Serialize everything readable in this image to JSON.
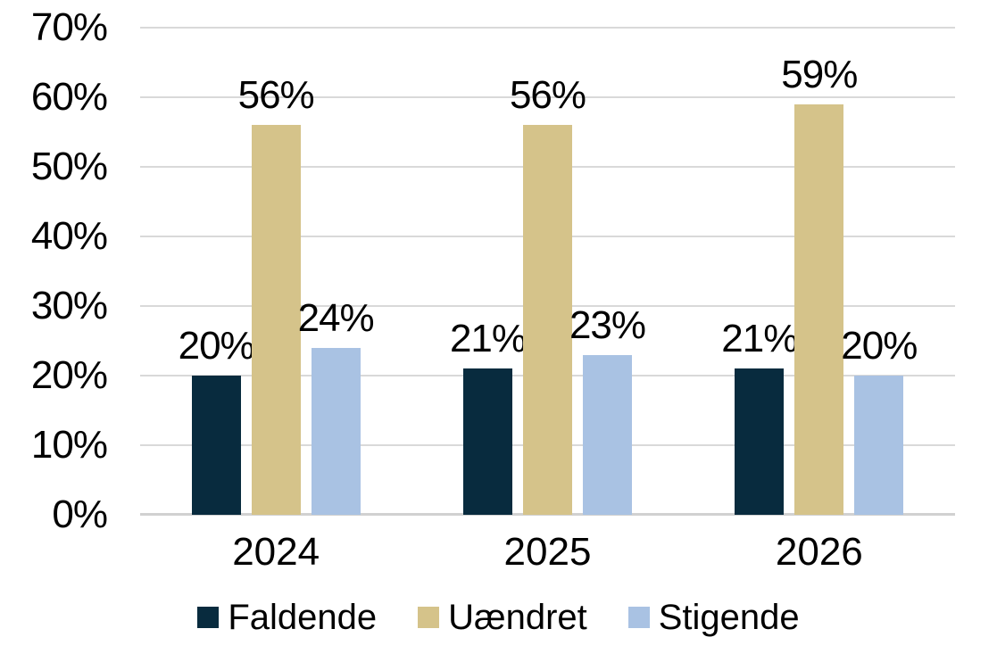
{
  "chart_data": {
    "type": "bar",
    "title": "",
    "xlabel": "",
    "ylabel": "",
    "categories": [
      "2024",
      "2025",
      "2026"
    ],
    "series": [
      {
        "name": "Faldende",
        "color": "#082b3e",
        "values": [
          20,
          21,
          21
        ]
      },
      {
        "name": "Uændret",
        "color": "#d5c38a",
        "values": [
          56,
          56,
          59
        ]
      },
      {
        "name": "Stigende",
        "color": "#a9c2e3",
        "values": [
          24,
          23,
          20
        ]
      }
    ],
    "data_labels": [
      [
        "20%",
        "56%",
        "24%"
      ],
      [
        "21%",
        "56%",
        "23%"
      ],
      [
        "21%",
        "59%",
        "20%"
      ]
    ],
    "ylim": [
      0,
      70
    ],
    "ytick_values": [
      70,
      60,
      50,
      40,
      30,
      20,
      10,
      0
    ],
    "ytick_labels": [
      "70%",
      "60%",
      "50%",
      "40%",
      "30%",
      "20%",
      "10%",
      "0%"
    ],
    "grid": true,
    "gridline_color": "#d9d9d9",
    "axis_line_color": "#d1d1d1",
    "legend_position": "bottom",
    "legend": [
      "Faldende",
      "Uændret",
      "Stigende"
    ]
  }
}
